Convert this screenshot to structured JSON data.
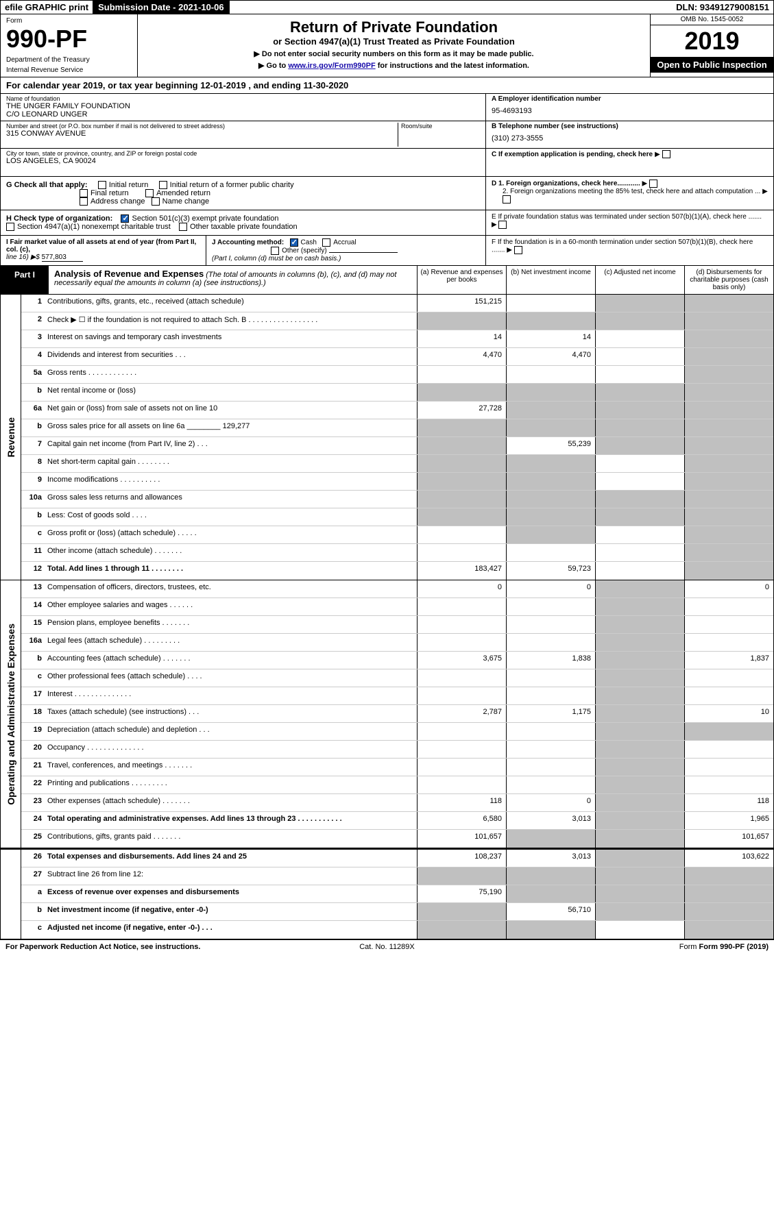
{
  "topbar": {
    "efile": "efile GRAPHIC print",
    "submission": "Submission Date - 2021-10-06",
    "dln": "DLN: 93491279008151"
  },
  "header": {
    "form_label": "Form",
    "form_num": "990-PF",
    "dept": "Department of the Treasury",
    "irs": "Internal Revenue Service",
    "title": "Return of Private Foundation",
    "subtitle": "or Section 4947(a)(1) Trust Treated as Private Foundation",
    "note1": "▶ Do not enter social security numbers on this form as it may be made public.",
    "note2_pre": "▶ Go to ",
    "note2_link": "www.irs.gov/Form990PF",
    "note2_post": " for instructions and the latest information.",
    "omb": "OMB No. 1545-0052",
    "year": "2019",
    "open": "Open to Public Inspection"
  },
  "calendar": "For calendar year 2019, or tax year beginning 12-01-2019                    , and ending 11-30-2020",
  "info": {
    "name_label": "Name of foundation",
    "name1": "THE UNGER FAMILY FOUNDATION",
    "name2": "C/O LEONARD UNGER",
    "addr_label": "Number and street (or P.O. box number if mail is not delivered to street address)",
    "addr": "315 CONWAY AVENUE",
    "room_label": "Room/suite",
    "city_label": "City or town, state or province, country, and ZIP or foreign postal code",
    "city": "LOS ANGELES, CA  90024",
    "ein_label": "A Employer identification number",
    "ein": "95-4693193",
    "phone_label": "B Telephone number (see instructions)",
    "phone": "(310) 273-3555",
    "c_label": "C If exemption application is pending, check here"
  },
  "checks": {
    "g_label": "G Check all that apply:",
    "g_initial": "Initial return",
    "g_initial_former": "Initial return of a former public charity",
    "g_final": "Final return",
    "g_amended": "Amended return",
    "g_address": "Address change",
    "g_name": "Name change",
    "h_label": "H Check type of organization:",
    "h_501c3": "Section 501(c)(3) exempt private foundation",
    "h_4947": "Section 4947(a)(1) nonexempt charitable trust",
    "h_other": "Other taxable private foundation",
    "d1": "D 1. Foreign organizations, check here............",
    "d2": "2. Foreign organizations meeting the 85% test, check here and attach computation ...",
    "e": "E  If private foundation status was terminated under section 507(b)(1)(A), check here .......",
    "i_label": "I Fair market value of all assets at end of year (from Part II, col. (c),",
    "i_line": "line 16) ▶$",
    "i_val": "577,803",
    "j_label": "J Accounting method:",
    "j_cash": "Cash",
    "j_accrual": "Accrual",
    "j_other": "Other (specify)",
    "j_note": "(Part I, column (d) must be on cash basis.)",
    "f": "F  If the foundation is in a 60-month termination under section 507(b)(1)(B), check here ......."
  },
  "part1": {
    "label": "Part I",
    "title": "Analysis of Revenue and Expenses",
    "title_note": "(The total of amounts in columns (b), (c), and (d) may not necessarily equal the amounts in column (a) (see instructions).)",
    "col_a": "(a) Revenue and expenses per books",
    "col_b": "(b) Net investment income",
    "col_c": "(c) Adjusted net income",
    "col_d": "(d) Disbursements for charitable purposes (cash basis only)"
  },
  "side_labels": {
    "revenue": "Revenue",
    "opex": "Operating and Administrative Expenses"
  },
  "rows": [
    {
      "n": "1",
      "d": "Contributions, gifts, grants, etc., received (attach schedule)",
      "a": "151,215",
      "b": "",
      "c": "grey",
      "dd": "grey"
    },
    {
      "n": "2",
      "d": "Check ▶ ☐ if the foundation is not required to attach Sch. B     .  .  .  .  .  .  .  .  .  .  .  .  .  .  .  .  .",
      "a": "grey",
      "b": "grey",
      "c": "grey",
      "dd": "grey"
    },
    {
      "n": "3",
      "d": "Interest on savings and temporary cash investments",
      "a": "14",
      "b": "14",
      "c": "",
      "dd": "grey"
    },
    {
      "n": "4",
      "d": "Dividends and interest from securities    .   .   .",
      "a": "4,470",
      "b": "4,470",
      "c": "",
      "dd": "grey"
    },
    {
      "n": "5a",
      "d": "Gross rents     .  .  .  .  .  .  .  .  .  .  .  .",
      "a": "",
      "b": "",
      "c": "",
      "dd": "grey"
    },
    {
      "n": "b",
      "d": "Net rental income or (loss)",
      "a": "grey",
      "b": "grey",
      "c": "grey",
      "dd": "grey"
    },
    {
      "n": "6a",
      "d": "Net gain or (loss) from sale of assets not on line 10",
      "a": "27,728",
      "b": "grey",
      "c": "grey",
      "dd": "grey"
    },
    {
      "n": "b",
      "d": "Gross sales price for all assets on line 6a ________ 129,277",
      "a": "grey",
      "b": "grey",
      "c": "grey",
      "dd": "grey"
    },
    {
      "n": "7",
      "d": "Capital gain net income (from Part IV, line 2)   .   .   .",
      "a": "grey",
      "b": "55,239",
      "c": "grey",
      "dd": "grey"
    },
    {
      "n": "8",
      "d": "Net short-term capital gain  .  .  .  .  .  .  .  .",
      "a": "grey",
      "b": "grey",
      "c": "",
      "dd": "grey"
    },
    {
      "n": "9",
      "d": "Income modifications .  .  .  .  .  .  .  .  .  .",
      "a": "grey",
      "b": "grey",
      "c": "",
      "dd": "grey"
    },
    {
      "n": "10a",
      "d": "Gross sales less returns and allowances",
      "a": "grey",
      "b": "grey",
      "c": "grey",
      "dd": "grey"
    },
    {
      "n": "b",
      "d": "Less: Cost of goods sold    .   .   .   .",
      "a": "grey",
      "b": "grey",
      "c": "grey",
      "dd": "grey"
    },
    {
      "n": "c",
      "d": "Gross profit or (loss) (attach schedule)    .   .   .   .   .",
      "a": "",
      "b": "grey",
      "c": "",
      "dd": "grey"
    },
    {
      "n": "11",
      "d": "Other income (attach schedule)    .   .   .   .   .   .   .",
      "a": "",
      "b": "",
      "c": "",
      "dd": "grey"
    },
    {
      "n": "12",
      "d": "Total. Add lines 1 through 11   .   .   .   .   .   .   .   .",
      "bold": true,
      "a": "183,427",
      "b": "59,723",
      "c": "",
      "dd": "grey"
    },
    {
      "n": "13",
      "d": "Compensation of officers, directors, trustees, etc.",
      "a": "0",
      "b": "0",
      "c": "grey",
      "dd": "0"
    },
    {
      "n": "14",
      "d": "Other employee salaries and wages    .   .   .   .   .   .",
      "a": "",
      "b": "",
      "c": "grey",
      "dd": ""
    },
    {
      "n": "15",
      "d": "Pension plans, employee benefits   .   .   .   .   .   .   .",
      "a": "",
      "b": "",
      "c": "grey",
      "dd": ""
    },
    {
      "n": "16a",
      "d": "Legal fees (attach schedule) .  .  .  .  .  .  .  .  .",
      "a": "",
      "b": "",
      "c": "grey",
      "dd": ""
    },
    {
      "n": "b",
      "d": "Accounting fees (attach schedule) .  .  .  .  .  .  .",
      "a": "3,675",
      "b": "1,838",
      "c": "grey",
      "dd": "1,837"
    },
    {
      "n": "c",
      "d": "Other professional fees (attach schedule)    .   .   .   .",
      "a": "",
      "b": "",
      "c": "grey",
      "dd": ""
    },
    {
      "n": "17",
      "d": "Interest  .  .  .  .  .  .  .  .  .  .  .  .  .  .",
      "a": "",
      "b": "",
      "c": "grey",
      "dd": ""
    },
    {
      "n": "18",
      "d": "Taxes (attach schedule) (see instructions)    .   .   .",
      "a": "2,787",
      "b": "1,175",
      "c": "grey",
      "dd": "10"
    },
    {
      "n": "19",
      "d": "Depreciation (attach schedule) and depletion    .   .   .",
      "a": "",
      "b": "",
      "c": "grey",
      "dd": "grey"
    },
    {
      "n": "20",
      "d": "Occupancy .  .  .  .  .  .  .  .  .  .  .  .  .  .",
      "a": "",
      "b": "",
      "c": "grey",
      "dd": ""
    },
    {
      "n": "21",
      "d": "Travel, conferences, and meetings .  .  .  .  .  .  .",
      "a": "",
      "b": "",
      "c": "grey",
      "dd": ""
    },
    {
      "n": "22",
      "d": "Printing and publications .  .  .  .  .  .  .  .  .",
      "a": "",
      "b": "",
      "c": "grey",
      "dd": ""
    },
    {
      "n": "23",
      "d": "Other expenses (attach schedule) .  .  .  .  .  .  .",
      "a": "118",
      "b": "0",
      "c": "grey",
      "dd": "118"
    },
    {
      "n": "24",
      "d": "Total operating and administrative expenses. Add lines 13 through 23   .   .   .   .   .   .   .   .   .   .   .",
      "bold": true,
      "a": "6,580",
      "b": "3,013",
      "c": "grey",
      "dd": "1,965"
    },
    {
      "n": "25",
      "d": "Contributions, gifts, grants paid     .   .   .   .   .   .   .",
      "a": "101,657",
      "b": "grey",
      "c": "grey",
      "dd": "101,657"
    },
    {
      "n": "26",
      "d": "Total expenses and disbursements. Add lines 24 and 25",
      "bold": true,
      "a": "108,237",
      "b": "3,013",
      "c": "grey",
      "dd": "103,622"
    },
    {
      "n": "27",
      "d": "Subtract line 26 from line 12:",
      "a": "grey",
      "b": "grey",
      "c": "grey",
      "dd": "grey"
    },
    {
      "n": "a",
      "d": "Excess of revenue over expenses and disbursements",
      "bold": true,
      "a": "75,190",
      "b": "grey",
      "c": "grey",
      "dd": "grey"
    },
    {
      "n": "b",
      "d": "Net investment income (if negative, enter -0-)",
      "bold": true,
      "a": "grey",
      "b": "56,710",
      "c": "grey",
      "dd": "grey"
    },
    {
      "n": "c",
      "d": "Adjusted net income (if negative, enter -0-)   .   .   .",
      "bold": true,
      "a": "grey",
      "b": "grey",
      "c": "",
      "dd": "grey"
    }
  ],
  "footer": {
    "left": "For Paperwork Reduction Act Notice, see instructions.",
    "mid": "Cat. No. 11289X",
    "right": "Form 990-PF (2019)"
  }
}
